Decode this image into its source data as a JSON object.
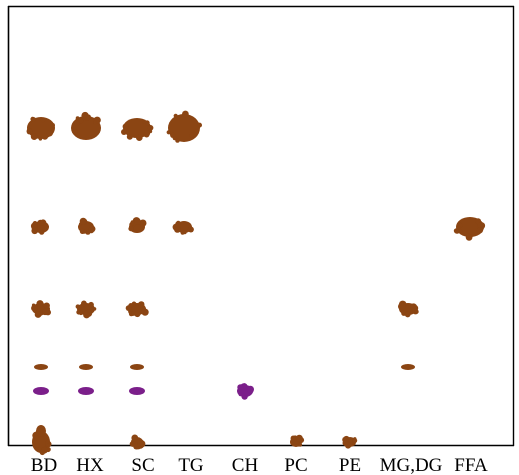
{
  "plate": {
    "spot_colors": {
      "brown": "#8B4513",
      "purple": "#7B1F8A"
    },
    "lanes": [
      {
        "label": "BD",
        "spots": [
          {
            "color": "brown",
            "shape": "blob",
            "level": "high"
          },
          {
            "color": "brown",
            "shape": "spot",
            "level": "mid-high"
          },
          {
            "color": "brown",
            "shape": "spot",
            "level": "mid"
          },
          {
            "color": "brown",
            "shape": "dash",
            "level": "low"
          },
          {
            "color": "purple",
            "shape": "dash",
            "level": "lower"
          },
          {
            "color": "brown",
            "shape": "blob",
            "level": "origin"
          }
        ]
      },
      {
        "label": "HX",
        "spots": [
          {
            "color": "brown",
            "shape": "blob",
            "level": "high"
          },
          {
            "color": "brown",
            "shape": "spot",
            "level": "mid-high"
          },
          {
            "color": "brown",
            "shape": "spot",
            "level": "mid"
          },
          {
            "color": "brown",
            "shape": "dash",
            "level": "low"
          },
          {
            "color": "purple",
            "shape": "dash",
            "level": "lower"
          }
        ]
      },
      {
        "label": "SC",
        "spots": [
          {
            "color": "brown",
            "shape": "blob",
            "level": "high"
          },
          {
            "color": "brown",
            "shape": "spot",
            "level": "mid-high"
          },
          {
            "color": "brown",
            "shape": "spot",
            "level": "mid"
          },
          {
            "color": "brown",
            "shape": "dash",
            "level": "low"
          },
          {
            "color": "purple",
            "shape": "dash",
            "level": "lower"
          },
          {
            "color": "brown",
            "shape": "spot",
            "level": "origin"
          }
        ]
      },
      {
        "label": "TG",
        "spots": [
          {
            "color": "brown",
            "shape": "blob",
            "level": "high"
          },
          {
            "color": "brown",
            "shape": "spot",
            "level": "mid-high"
          }
        ]
      },
      {
        "label": "CH",
        "spots": [
          {
            "color": "purple",
            "shape": "spot",
            "level": "lower"
          }
        ]
      },
      {
        "label": "PC",
        "spots": [
          {
            "color": "brown",
            "shape": "spot",
            "level": "origin"
          }
        ]
      },
      {
        "label": "PE",
        "spots": [
          {
            "color": "brown",
            "shape": "spot",
            "level": "origin"
          }
        ]
      },
      {
        "label": "MG,DG",
        "spots": [
          {
            "color": "brown",
            "shape": "spot",
            "level": "mid"
          },
          {
            "color": "brown",
            "shape": "dash",
            "level": "low"
          }
        ]
      },
      {
        "label": "FFA",
        "spots": [
          {
            "color": "brown",
            "shape": "blob",
            "level": "mid-high"
          }
        ]
      }
    ]
  }
}
